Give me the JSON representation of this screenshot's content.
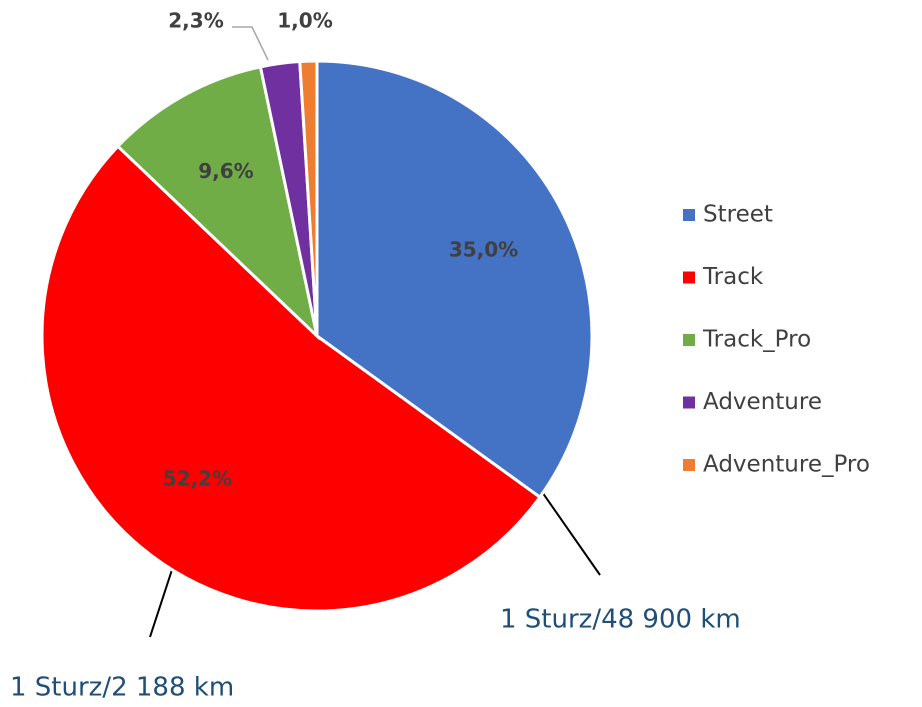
{
  "chart_data": {
    "type": "pie",
    "categories": [
      "Street",
      "Track",
      "Track_Pro",
      "Adventure",
      "Adventure_Pro"
    ],
    "values": [
      35.0,
      52.2,
      9.6,
      2.3,
      1.0
    ],
    "value_labels": [
      "35,0%",
      "52,2%",
      "9,6%",
      "2,3%",
      "1,0%"
    ],
    "colors": [
      "#4472c4",
      "#ff0000",
      "#70ad47",
      "#7030a0",
      "#ed7d31"
    ],
    "legend": "right",
    "annotations": [
      "1 Sturz/48 900 km",
      "1 Sturz/2 188 km"
    ]
  }
}
